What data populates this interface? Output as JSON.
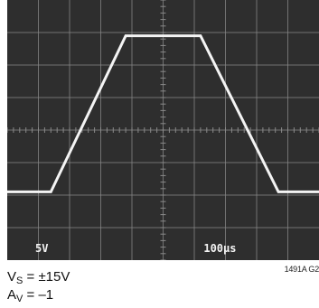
{
  "chart_data": {
    "type": "line",
    "title": "",
    "xlabel": "",
    "ylabel": "",
    "x_divisions": 10,
    "y_divisions": 8,
    "y_scale_label": "5V",
    "x_scale_label": "100µs",
    "xlim": [
      0,
      10
    ],
    "ylim": [
      0,
      8
    ],
    "grid": true,
    "background_color": "#2e2e2e",
    "grid_color": "#8a8a8a",
    "trace_color": "#f4f4f4",
    "series": [
      {
        "x": [
          0,
          1.4,
          3.8,
          6.2,
          8.7,
          10
        ],
        "y": [
          2.1,
          2.1,
          6.9,
          6.9,
          2.1,
          2.1
        ]
      }
    ]
  },
  "caption": {
    "figure_id": "1491A G2",
    "vs_symbol": "V",
    "vs_sub": "S",
    "vs_value": " = ±15V",
    "av_symbol": "A",
    "av_sub": "V",
    "av_value": " = –1"
  }
}
